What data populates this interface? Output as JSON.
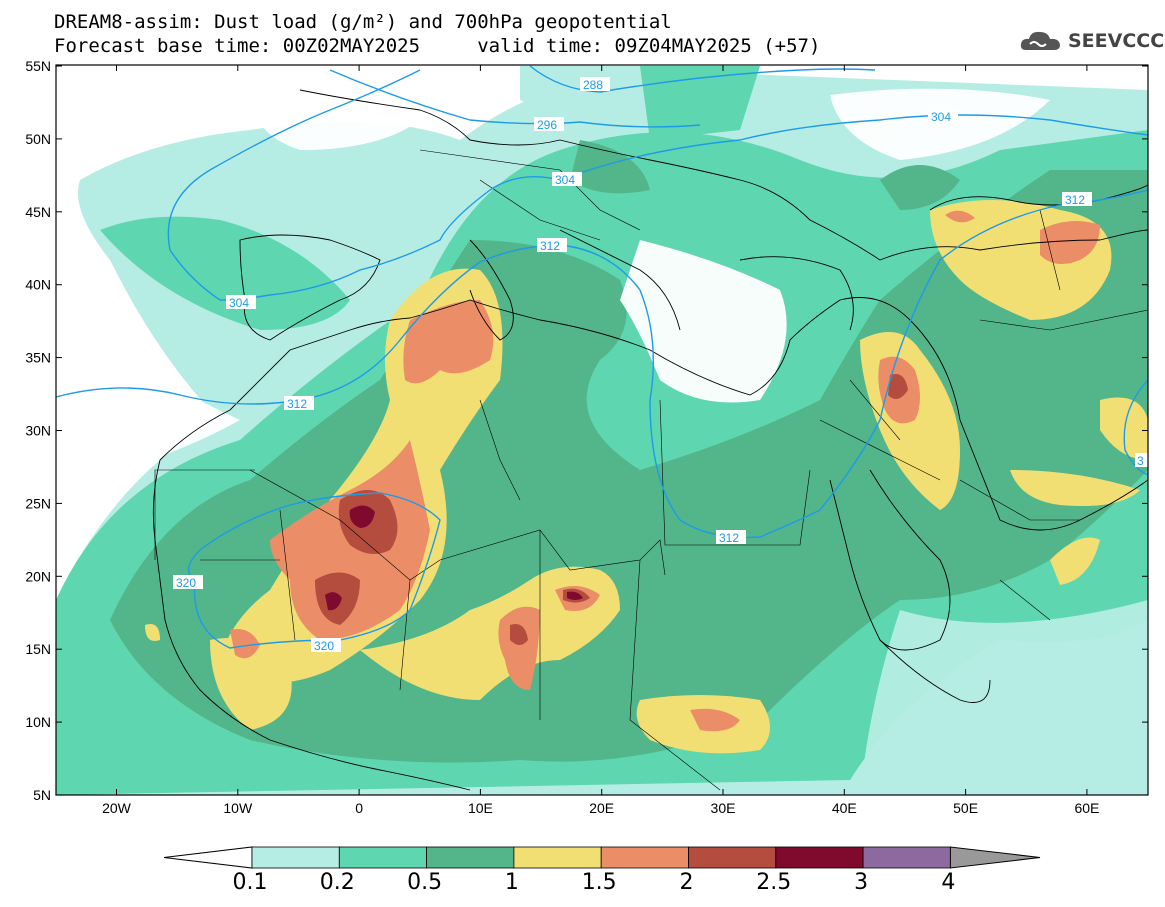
{
  "header": {
    "title_line1": "DREAM8-assim: Dust load (g/m²) and 700hPa geopotential",
    "title_line2": "Forecast base time: 00Z02MAY2025     valid time: 09Z04MAY2025 (+57)"
  },
  "logo": {
    "text": "SEEVCCC",
    "icon": "cloud-logo-icon"
  },
  "map": {
    "lat_labels": [
      "55N",
      "50N",
      "45N",
      "40N",
      "35N",
      "30N",
      "25N",
      "20N",
      "15N",
      "10N",
      "5N"
    ],
    "lon_labels": [
      "20W",
      "10W",
      "0",
      "10E",
      "20E",
      "30E",
      "40E",
      "50E",
      "60E"
    ],
    "contour_labels": [
      "288",
      "296",
      "304",
      "304",
      "304",
      "312",
      "312",
      "312",
      "312",
      "320",
      "320",
      "3"
    ]
  },
  "colorbar": {
    "labels": [
      "0.1",
      "0.2",
      "0.5",
      "1",
      "1.5",
      "2",
      "2.5",
      "3",
      "4"
    ],
    "colors": [
      "#b5ede4",
      "#5ed6b0",
      "#52b68a",
      "#f2df74",
      "#eb8e67",
      "#b54d3f",
      "#800a2e",
      "#8c6aa0"
    ],
    "under_color": "#ffffff",
    "over_color": "#999999"
  }
}
